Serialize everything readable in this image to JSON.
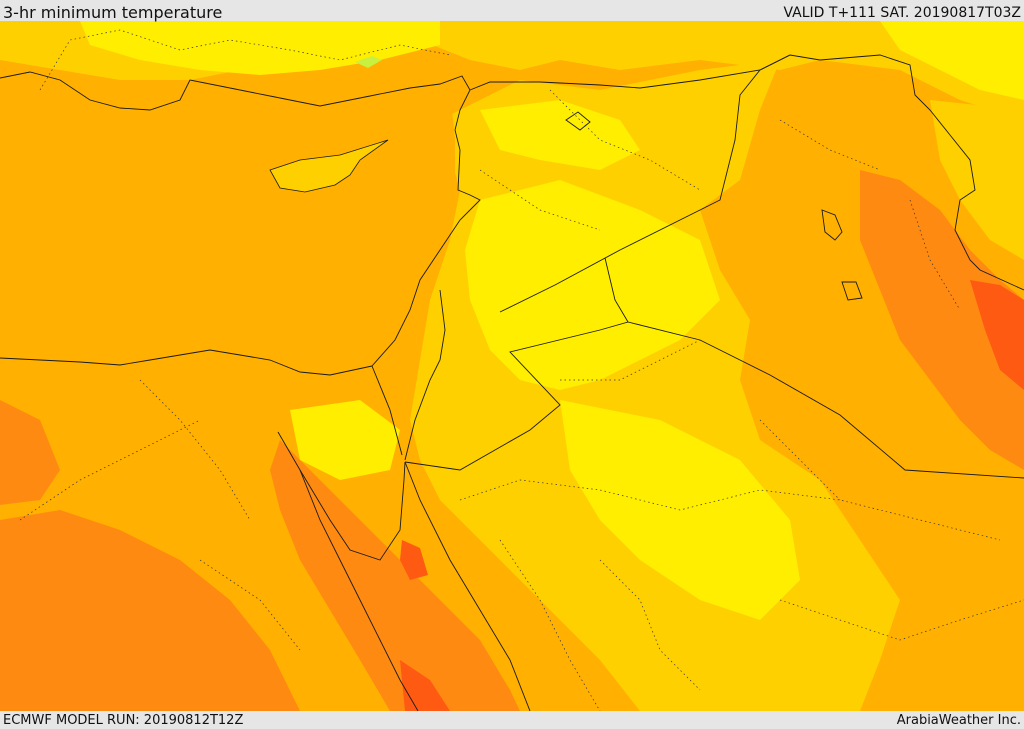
{
  "header": {
    "title": "3-hr minimum temperature",
    "valid": "VALID T+111 SAT. 20190817T03Z"
  },
  "footer": {
    "model_run": "ECMWF MODEL RUN: 20190812T12Z",
    "credit": "ArabiaWeather Inc."
  },
  "map": {
    "region": "Eastern Mediterranean, Levant, Iraq, northern Saudi Arabia, Egypt",
    "field": "minimum temperature shading",
    "palette": {
      "hottest": "#ff5a12",
      "very_hot": "#ff8a12",
      "hot": "#ffb000",
      "warm": "#ffd000",
      "mild": "#ffee00",
      "cool": "#ffff30",
      "coolest": "#c8f040"
    },
    "border_color": "#1a1a1a"
  }
}
